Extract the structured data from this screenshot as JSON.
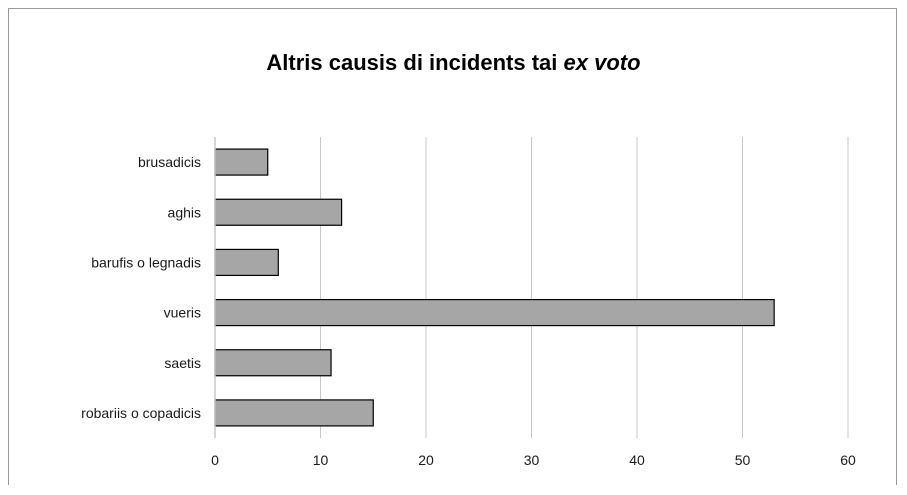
{
  "chart_data": {
    "type": "bar",
    "orientation": "horizontal",
    "title": "Altris causis di incidents tai",
    "title_emphasis": "ex voto",
    "categories": [
      "brusadicis",
      "aghis",
      "barufis o legnadis",
      "vueris",
      "saetis",
      "robariis o copadicis"
    ],
    "values": [
      5,
      12,
      6,
      53,
      11,
      15
    ],
    "xlabel": "",
    "ylabel": "",
    "xlim": [
      0,
      60
    ],
    "xticks": [
      0,
      10,
      20,
      30,
      40,
      50,
      60
    ],
    "grid": "vertical",
    "legend": "none",
    "bar_color": "#a6a6a6",
    "bar_edge_color": "#000000",
    "grid_color": "#c8c8c8"
  }
}
